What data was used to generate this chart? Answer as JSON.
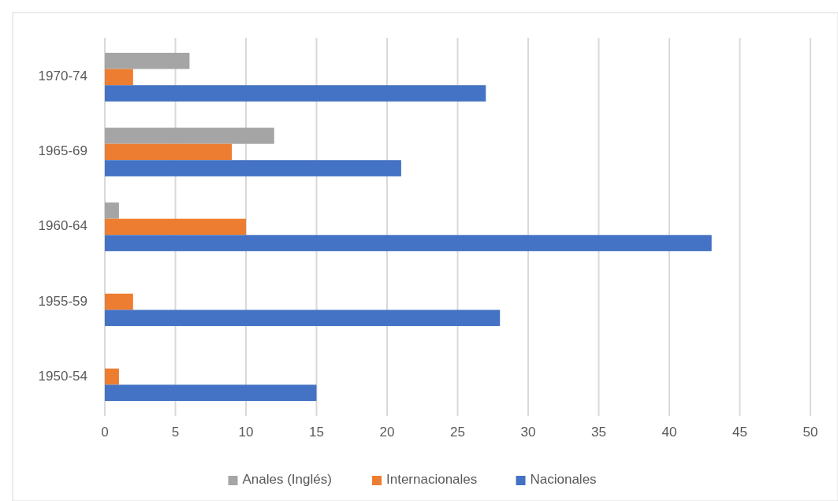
{
  "chart_data": {
    "type": "bar",
    "orientation": "horizontal",
    "categories": [
      "1970-74",
      "1965-69",
      "1960-64",
      "1955-59",
      "1950-54"
    ],
    "series": [
      {
        "name": "Anales (Inglés)",
        "color": "#a5a5a5",
        "values": [
          6,
          12,
          1,
          null,
          null
        ]
      },
      {
        "name": "Internacionales",
        "color": "#ed7d31",
        "values": [
          2,
          9,
          10,
          2,
          1
        ]
      },
      {
        "name": "Nacionales",
        "color": "#4472c4",
        "values": [
          27,
          21,
          43,
          28,
          15
        ]
      }
    ],
    "xlim": [
      0,
      50
    ],
    "xticks": [
      0,
      5,
      10,
      15,
      20,
      25,
      30,
      35,
      40,
      45,
      50
    ],
    "grid": "x",
    "legend": "bottom"
  }
}
